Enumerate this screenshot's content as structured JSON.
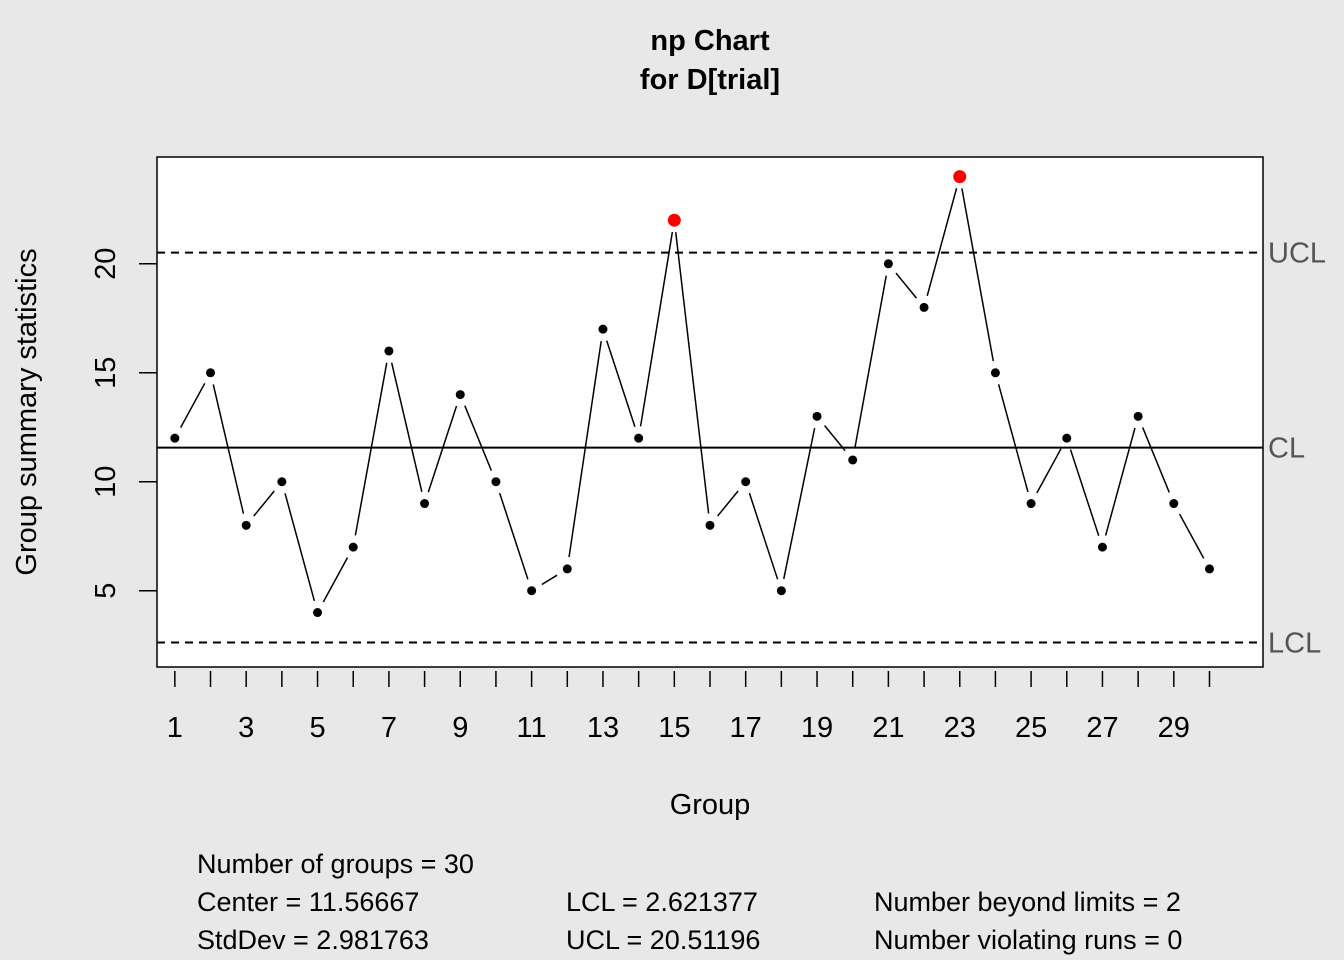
{
  "chart_data": {
    "type": "line",
    "title": "np Chart",
    "subtitle": "for D[trial]",
    "xlabel": "Group",
    "ylabel": "Group summary statistics",
    "x": [
      1,
      2,
      3,
      4,
      5,
      6,
      7,
      8,
      9,
      10,
      11,
      12,
      13,
      14,
      15,
      16,
      17,
      18,
      19,
      20,
      21,
      22,
      23,
      24,
      25,
      26,
      27,
      28,
      29,
      30
    ],
    "values": [
      12,
      15,
      8,
      10,
      4,
      7,
      16,
      9,
      14,
      10,
      5,
      6,
      17,
      12,
      22,
      8,
      10,
      5,
      13,
      11,
      20,
      18,
      24,
      15,
      9,
      12,
      7,
      13,
      9,
      6
    ],
    "x_tick_labels": [
      "1",
      "3",
      "5",
      "7",
      "9",
      "11",
      "13",
      "15",
      "17",
      "19",
      "21",
      "23",
      "25",
      "27",
      "29"
    ],
    "y_ticks": [
      5,
      10,
      15,
      20
    ],
    "xlim": [
      0.5,
      31.5
    ],
    "ylim": [
      1.5,
      24.9
    ],
    "center": 11.56667,
    "lcl": 2.621377,
    "ucl": 20.51196,
    "limit_labels": {
      "ucl": "UCL",
      "cl": "CL",
      "lcl": "LCL"
    },
    "beyond_limits_color": "#ff0000",
    "point_color": "#000000"
  },
  "stats": {
    "groups": "Number of groups = 30",
    "center": "Center = 11.56667",
    "stddev": "StdDev = 2.981763",
    "lcl": "LCL = 2.621377",
    "ucl": "UCL = 20.51196",
    "beyond": "Number beyond limits = 2",
    "runs": "Number violating runs = 0"
  }
}
